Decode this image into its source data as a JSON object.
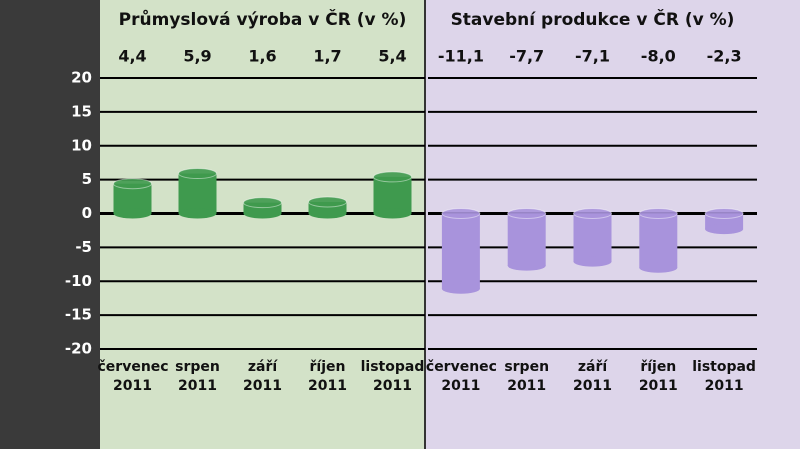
{
  "chart_data": [
    {
      "type": "bar",
      "title": "Průmyslová výroba v ČR (v %)",
      "categories": [
        "červenec 2011",
        "srpen 2011",
        "září 2011",
        "říjen 2011",
        "listopad 2011"
      ],
      "values": [
        4.4,
        5.9,
        1.6,
        1.7,
        5.4
      ],
      "value_labels": [
        "4,4",
        "5,9",
        "1,6",
        "1,7",
        "5,4"
      ],
      "color": "#3f9a4e",
      "ylim": [
        -20,
        20
      ],
      "yticks": [
        20,
        15,
        10,
        5,
        0,
        -5,
        -10,
        -15,
        -20
      ],
      "grid": true
    },
    {
      "type": "bar",
      "title": "Stavební produkce v ČR (v %)",
      "categories": [
        "červenec 2011",
        "srpen 2011",
        "září 2011",
        "říjen 2011",
        "listopad 2011"
      ],
      "values": [
        -11.1,
        -7.7,
        -7.1,
        -8.0,
        -2.3
      ],
      "value_labels": [
        "-11,1",
        "-7,7",
        "-7,1",
        "-8,0",
        "-2,3"
      ],
      "color": "#a893dc",
      "ylim": [
        -20,
        20
      ],
      "yticks": [
        20,
        15,
        10,
        5,
        0,
        -5,
        -10,
        -15,
        -20
      ],
      "grid": true
    }
  ]
}
